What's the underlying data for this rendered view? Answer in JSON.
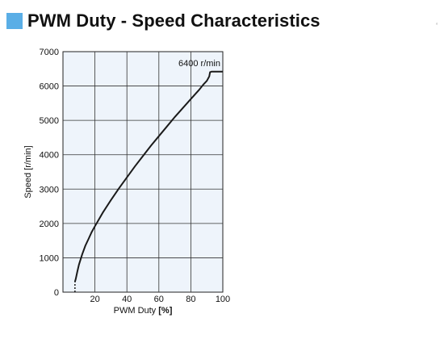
{
  "header": {
    "title": "PWM Duty - Speed Characteristics",
    "accent_color": "#5aaee6"
  },
  "edge_mark": "‘",
  "chart_data": {
    "type": "line",
    "title": "PWM Duty - Speed Characteristics",
    "xlabel_prefix": "PWM Duty ",
    "xlabel_unit": "[%]",
    "ylabel": "Speed [r/min]",
    "xlim": [
      0,
      100
    ],
    "ylim": [
      0,
      7000
    ],
    "x_ticks": [
      0,
      20,
      40,
      60,
      80,
      100
    ],
    "x_tick_labels": [
      "20",
      "40",
      "60",
      "80",
      "100"
    ],
    "y_ticks": [
      0,
      1000,
      2000,
      3000,
      4000,
      5000,
      6000,
      7000
    ],
    "grid": true,
    "plot_background": "#eef4fb",
    "line_color": "#1a1a1a",
    "annotation": "6400 r/min",
    "series": [
      {
        "points": [
          [
            7.5,
            300
          ],
          [
            8,
            380
          ],
          [
            9,
            600
          ],
          [
            10,
            800
          ],
          [
            12,
            1100
          ],
          [
            14,
            1350
          ],
          [
            16,
            1550
          ],
          [
            18,
            1750
          ],
          [
            20,
            1920
          ],
          [
            25,
            2320
          ],
          [
            30,
            2680
          ],
          [
            35,
            3020
          ],
          [
            40,
            3340
          ],
          [
            45,
            3660
          ],
          [
            50,
            3960
          ],
          [
            55,
            4260
          ],
          [
            60,
            4540
          ],
          [
            65,
            4820
          ],
          [
            70,
            5100
          ],
          [
            75,
            5360
          ],
          [
            80,
            5620
          ],
          [
            85,
            5880
          ],
          [
            88,
            6050
          ],
          [
            90,
            6150
          ],
          [
            91.5,
            6280
          ],
          [
            92,
            6400
          ],
          [
            93,
            6420
          ],
          [
            95,
            6420
          ],
          [
            100,
            6420
          ]
        ]
      }
    ],
    "dotted_stub": {
      "x": 7.5,
      "y_from": 0,
      "y_to": 300
    }
  }
}
